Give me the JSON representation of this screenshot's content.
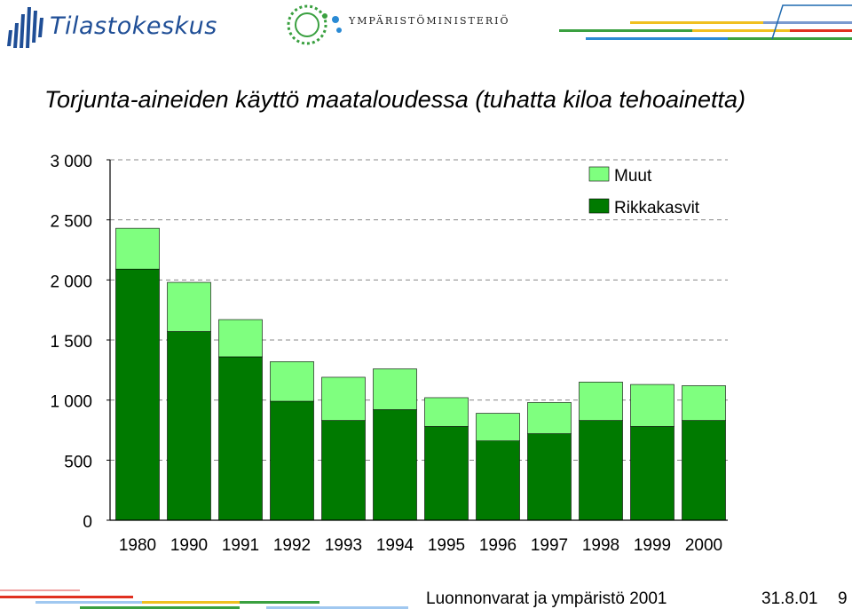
{
  "header": {
    "org_logo_text": "Tilastokeskus",
    "ministry_logo_text": "YMPÄRISTÖMINISTERIÖ"
  },
  "title": "Torjunta-aineiden käyttö maataloudessa (tuhatta kiloa tehoainetta)",
  "chart_data": {
    "type": "bar",
    "stacked": true,
    "categories": [
      "1980",
      "1990",
      "1991",
      "1992",
      "1993",
      "1994",
      "1995",
      "1996",
      "1997",
      "1998",
      "1999",
      "2000"
    ],
    "series": [
      {
        "name": "Rikkakasvit",
        "color": "#007a00",
        "values": [
          2090,
          1570,
          1360,
          990,
          830,
          920,
          780,
          660,
          720,
          830,
          780,
          830
        ]
      },
      {
        "name": "Muut",
        "color": "#7fff7f",
        "values": [
          340,
          410,
          310,
          330,
          360,
          340,
          240,
          230,
          260,
          320,
          350,
          290
        ]
      }
    ],
    "ylim": [
      0,
      3000
    ],
    "yticks": [
      0,
      500,
      1000,
      1500,
      2000,
      2500,
      3000
    ],
    "ytick_labels": [
      "0",
      "500",
      "1 000",
      "1 500",
      "2 000",
      "2 500",
      "3 000"
    ],
    "grid": "dashed-horizontal",
    "legend_position": "top-right",
    "xlabel": "",
    "ylabel": ""
  },
  "footer": {
    "source": "Luonnonvarat ja ympäristö 2001",
    "date": "31.8.01",
    "page": "9"
  },
  "colors": {
    "brand_blue": "#1f4e96",
    "dark_green": "#007a00",
    "light_green": "#7fff7f",
    "deco_yellow": "#f0c020",
    "deco_red": "#e03020"
  }
}
